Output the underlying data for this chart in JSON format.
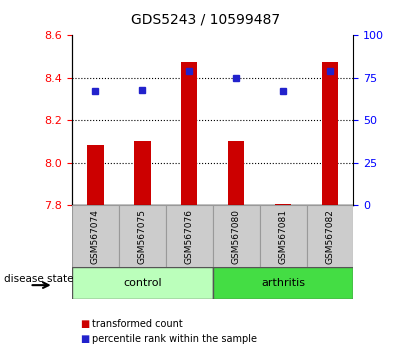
{
  "title": "GDS5243 / 10599487",
  "samples": [
    "GSM567074",
    "GSM567075",
    "GSM567076",
    "GSM567080",
    "GSM567081",
    "GSM567082"
  ],
  "transformed_counts": [
    8.085,
    8.105,
    8.475,
    8.105,
    7.805,
    8.475
  ],
  "percentile_ranks": [
    67,
    68,
    79,
    75,
    67,
    79
  ],
  "groups": [
    "control",
    "control",
    "control",
    "arthritis",
    "arthritis",
    "arthritis"
  ],
  "ylim_left": [
    7.8,
    8.6
  ],
  "ylim_right": [
    0,
    100
  ],
  "yticks_left": [
    7.8,
    8.0,
    8.2,
    8.4,
    8.6
  ],
  "yticks_right": [
    0,
    25,
    50,
    75,
    100
  ],
  "bar_color": "#cc0000",
  "dot_color": "#2222cc",
  "control_color": "#bbffbb",
  "arthritis_color": "#44dd44",
  "label_bg_color": "#cccccc",
  "bar_bottom": 7.8,
  "legend_bar_label": "transformed count",
  "legend_dot_label": "percentile rank within the sample",
  "group_label": "disease state"
}
